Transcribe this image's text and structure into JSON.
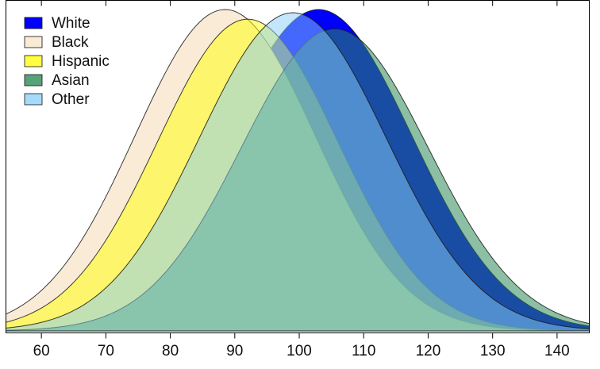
{
  "chart_data": {
    "type": "area",
    "title": "",
    "xlabel": "",
    "ylabel": "",
    "xlim": [
      54.5,
      145
    ],
    "x_ticks": [
      60,
      70,
      80,
      90,
      100,
      110,
      120,
      130,
      140
    ],
    "legend_position": "top-left",
    "grid": false,
    "series": [
      {
        "name": "White",
        "mean": 103,
        "sd": 14.5,
        "peak": 1.0,
        "color": "#0000ff",
        "opacity": 1.0
      },
      {
        "name": "Black",
        "mean": 88.5,
        "sd": 14.0,
        "peak": 1.0,
        "color": "#faebd7",
        "opacity": 1.0
      },
      {
        "name": "Hispanic",
        "mean": 92,
        "sd": 14.0,
        "peak": 0.97,
        "color": "#ffff00",
        "opacity": 0.5
      },
      {
        "name": "Asian",
        "mean": 105.5,
        "sd": 14.5,
        "peak": 0.94,
        "color": "#2e8b57",
        "opacity": 0.55
      },
      {
        "name": "Other",
        "mean": 99,
        "sd": 14.5,
        "peak": 0.99,
        "color": "#87cefa",
        "opacity": 0.5
      }
    ],
    "draw_order": [
      "White",
      "Black",
      "Hispanic",
      "Asian",
      "Other"
    ]
  }
}
